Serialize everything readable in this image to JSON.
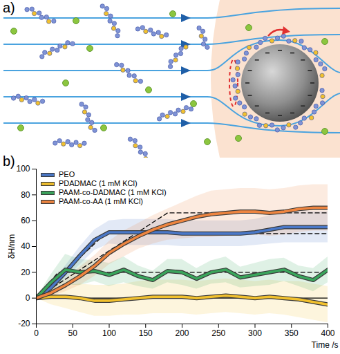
{
  "panel_labels": [
    "a)",
    "b)"
  ],
  "chart_data": {
    "type": "line",
    "x_label": "Time /s",
    "y_label": "δH/nm",
    "x": [
      0,
      20,
      40,
      60,
      80,
      100,
      120,
      140,
      160,
      180,
      200,
      220,
      240,
      260,
      280,
      300,
      320,
      340,
      360,
      380,
      400
    ],
    "series": [
      {
        "name": "PEO",
        "color": "#4a78c8",
        "values": [
          0,
          8,
          20,
          33,
          45,
          51,
          51,
          51,
          51,
          51,
          50,
          50,
          50,
          50,
          50,
          51,
          53,
          55,
          55,
          55,
          55
        ],
        "error": [
          0,
          3,
          5,
          7,
          8,
          9,
          10,
          10,
          10,
          10,
          10,
          10,
          10,
          10,
          10,
          10,
          11,
          12,
          12,
          12,
          12
        ]
      },
      {
        "name": "PDADMAC (1 mM KCl)",
        "color": "#f2c12e",
        "values": [
          0,
          1,
          1,
          0,
          -2,
          -2,
          -1,
          0,
          1,
          1,
          1,
          0,
          1,
          2,
          1,
          0,
          1,
          0,
          -1,
          -3,
          -5
        ],
        "error": [
          0,
          6,
          9,
          11,
          12,
          12,
          12,
          13,
          13,
          13,
          13,
          13,
          13,
          13,
          13,
          13,
          13,
          13,
          14,
          14,
          14
        ]
      },
      {
        "name": "PAAM-co-DADMAC (1 mM KCl)",
        "color": "#3aa55c",
        "values": [
          0,
          12,
          22,
          20,
          21,
          18,
          22,
          17,
          14,
          21,
          20,
          15,
          20,
          22,
          16,
          18,
          20,
          22,
          17,
          14,
          22
        ],
        "error": [
          0,
          6,
          12,
          10,
          8,
          9,
          10,
          8,
          7,
          9,
          10,
          8,
          9,
          10,
          8,
          9,
          10,
          9,
          8,
          9,
          10
        ]
      },
      {
        "name": "PAAM-co-AA (1 mM KCl)",
        "color": "#ee8540",
        "values": [
          0,
          4,
          10,
          17,
          25,
          35,
          42,
          48,
          53,
          57,
          60,
          63,
          65,
          66,
          67,
          67,
          66,
          67,
          69,
          70,
          70
        ],
        "error": [
          0,
          3,
          5,
          7,
          8,
          9,
          10,
          10,
          11,
          12,
          14,
          16,
          18,
          18,
          18,
          18,
          18,
          18,
          18,
          18,
          18
        ]
      }
    ],
    "reference_lines": [
      {
        "x": [
          0,
          95,
          400
        ],
        "values": [
          0,
          50,
          50
        ],
        "color": "#000000",
        "line_style": "dashed"
      },
      {
        "x": [
          0,
          180,
          400
        ],
        "values": [
          0,
          66,
          66
        ],
        "color": "#000000",
        "line_style": "dashed"
      },
      {
        "x": [
          0,
          30,
          400
        ],
        "values": [
          0,
          20,
          20
        ],
        "color": "#000000",
        "line_style": "dashed"
      },
      {
        "x": [
          0,
          400
        ],
        "values": [
          0,
          0
        ],
        "color": "#000000",
        "line_style": "solid"
      }
    ],
    "xlim": [
      0,
      400
    ],
    "xticks": [
      0,
      50,
      100,
      150,
      200,
      250,
      300,
      350,
      400
    ],
    "ylim": [
      -20,
      100
    ],
    "yticks": [
      -20,
      0,
      20,
      40,
      60,
      80,
      100
    ],
    "grid": false,
    "legend": "top-left"
  }
}
